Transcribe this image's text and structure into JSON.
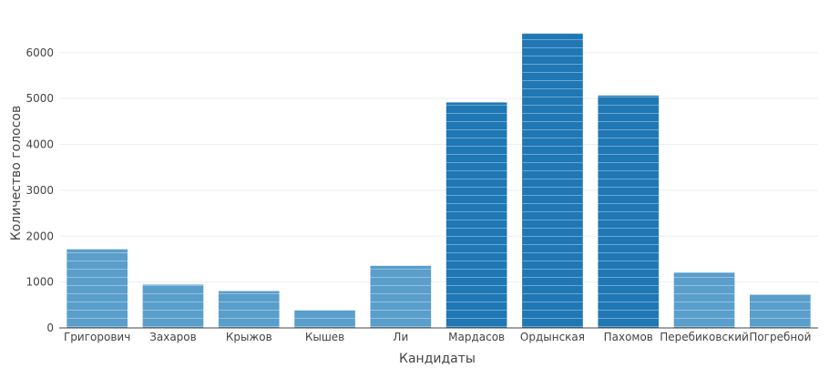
{
  "chart_data": {
    "type": "bar",
    "title": "",
    "xlabel": "Кандидаты",
    "ylabel": "Количество голосов",
    "categories": [
      "Григорович",
      "Захаров",
      "Крыжов",
      "Кышев",
      "Ли",
      "Мардасов",
      "Ордынская",
      "Пахомов",
      "Перебиковский",
      "Погребной"
    ],
    "values": [
      1720,
      950,
      810,
      390,
      1360,
      4920,
      6420,
      5070,
      1210,
      730
    ],
    "ylim": [
      0,
      6750
    ],
    "yticks": [
      0,
      1000,
      2000,
      3000,
      4000,
      5000,
      6000
    ],
    "grid": true,
    "legend": "none",
    "colors": {
      "bar": "#1f77b4",
      "bar_light": "#5a9ecb",
      "stripe": "#ffffff",
      "grid": "#eeeeee",
      "axis": "#444444"
    }
  }
}
